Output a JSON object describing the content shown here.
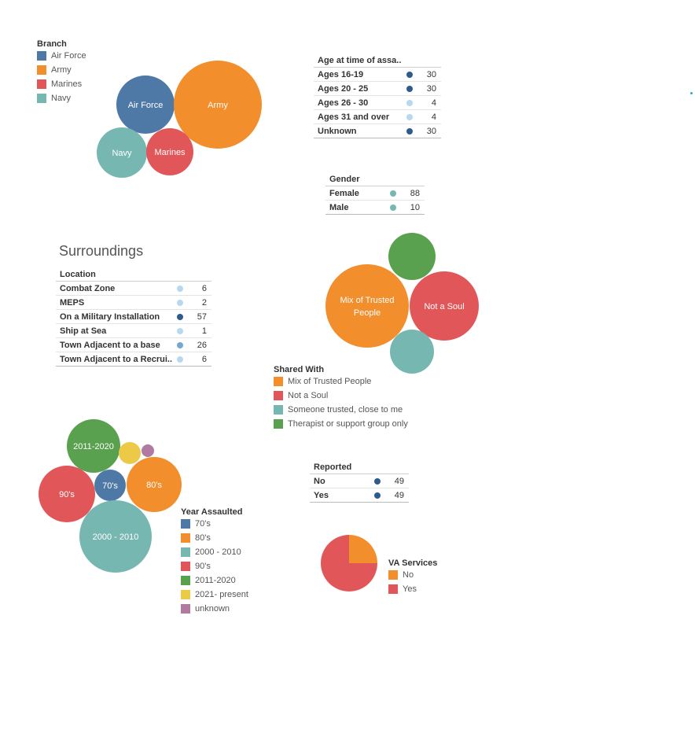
{
  "colors": {
    "blue": "#4e79a7",
    "orange": "#f28e2b",
    "red": "#e15759",
    "teal": "#76b7b2",
    "green": "#59a14f",
    "yellow": "#edc948",
    "purple": "#b07aa1",
    "dot_dark": "#2d5b8c",
    "dot_light": "#b7d8ee",
    "dot_mid": "#76a7d0",
    "dot_teal": "#76b7b2"
  },
  "branch": {
    "legend_title": "Branch",
    "legend": [
      {
        "label": "Air Force",
        "color": "#4e79a7"
      },
      {
        "label": "Army",
        "color": "#f28e2b"
      },
      {
        "label": "Marines",
        "color": "#e15759"
      },
      {
        "label": "Navy",
        "color": "#76b7b2"
      }
    ]
  },
  "age_table": {
    "title": "Age at time of assa..",
    "rows": [
      {
        "label": "Ages 16-19",
        "value": "30",
        "dot": "#2d5b8c"
      },
      {
        "label": "Ages 20 - 25",
        "value": "30",
        "dot": "#2d5b8c"
      },
      {
        "label": "Ages 26 - 30",
        "value": "4",
        "dot": "#b7d8ee"
      },
      {
        "label": "Ages 31 and over",
        "value": "4",
        "dot": "#b7d8ee"
      },
      {
        "label": "Unknown",
        "value": "30",
        "dot": "#2d5b8c"
      }
    ]
  },
  "gender_table": {
    "title": "Gender",
    "rows": [
      {
        "label": "Female",
        "value": "88",
        "dot": "#76b7b2"
      },
      {
        "label": "Male",
        "value": "10",
        "dot": "#76b7b2"
      }
    ]
  },
  "surroundings": {
    "heading": "Surroundings",
    "table_title": "Location",
    "rows": [
      {
        "label": "Combat Zone",
        "value": "6",
        "dot": "#b7d8ee"
      },
      {
        "label": "MEPS",
        "value": "2",
        "dot": "#b7d8ee"
      },
      {
        "label": "On a Military Installation",
        "value": "57",
        "dot": "#2d5b8c"
      },
      {
        "label": "Ship at Sea",
        "value": "1",
        "dot": "#b7d8ee"
      },
      {
        "label": "Town Adjacent to a base",
        "value": "26",
        "dot": "#76a7d0"
      },
      {
        "label": "Town Adjacent to a Recrui..",
        "value": "6",
        "dot": "#b7d8ee"
      }
    ]
  },
  "shared_with": {
    "legend_title": "Shared With",
    "legend": [
      {
        "label": "Mix of Trusted People",
        "color": "#f28e2b"
      },
      {
        "label": "Not a Soul",
        "color": "#e15759"
      },
      {
        "label": "Someone trusted, close to me",
        "color": "#76b7b2"
      },
      {
        "label": "Therapist or support group only",
        "color": "#59a14f"
      }
    ]
  },
  "year_assaulted": {
    "legend_title": "Year Assaulted",
    "legend": [
      {
        "label": "70's",
        "color": "#4e79a7"
      },
      {
        "label": "80's",
        "color": "#f28e2b"
      },
      {
        "label": "2000 - 2010",
        "color": "#76b7b2"
      },
      {
        "label": "90's",
        "color": "#e15759"
      },
      {
        "label": "2011-2020",
        "color": "#59a14f"
      },
      {
        "label": "2021- present",
        "color": "#edc948"
      },
      {
        "label": "unknown",
        "color": "#b07aa1"
      }
    ]
  },
  "reported_table": {
    "title": "Reported",
    "rows": [
      {
        "label": "No",
        "value": "49",
        "dot": "#2d5b8c"
      },
      {
        "label": "Yes",
        "value": "49",
        "dot": "#2d5b8c"
      }
    ]
  },
  "va_services": {
    "legend_title": "VA Services",
    "legend": [
      {
        "label": "No",
        "color": "#f28e2b"
      },
      {
        "label": "Yes",
        "color": "#e15759"
      }
    ]
  },
  "chart_data": [
    {
      "type": "bubble",
      "name": "branch",
      "items": [
        {
          "label": "Air Force",
          "color": "#4e79a7"
        },
        {
          "label": "Army",
          "color": "#f28e2b"
        },
        {
          "label": "Navy",
          "color": "#76b7b2"
        },
        {
          "label": "Marines",
          "color": "#e15759"
        }
      ]
    },
    {
      "type": "table",
      "name": "age",
      "categories": [
        "Ages 16-19",
        "Ages 20 - 25",
        "Ages 26 - 30",
        "Ages 31 and over",
        "Unknown"
      ],
      "values": [
        30,
        30,
        4,
        4,
        30
      ]
    },
    {
      "type": "table",
      "name": "gender",
      "categories": [
        "Female",
        "Male"
      ],
      "values": [
        88,
        10
      ]
    },
    {
      "type": "table",
      "name": "location",
      "categories": [
        "Combat Zone",
        "MEPS",
        "On a Military Installation",
        "Ship at Sea",
        "Town Adjacent to a base",
        "Town Adjacent to a Recrui.."
      ],
      "values": [
        6,
        2,
        57,
        1,
        26,
        6
      ]
    },
    {
      "type": "bubble",
      "name": "shared_with",
      "items": [
        {
          "label": "Therapist or support group only",
          "text": "",
          "color": "#59a14f"
        },
        {
          "label": "Mix of Trusted People",
          "text": "Mix of Trusted People",
          "color": "#f28e2b"
        },
        {
          "label": "Not a Soul",
          "text": "Not a Soul",
          "color": "#e15759"
        },
        {
          "label": "Someone trusted, close to me",
          "text": "",
          "color": "#76b7b2"
        }
      ]
    },
    {
      "type": "bubble",
      "name": "year_assaulted",
      "items": [
        {
          "label": "2011-2020",
          "text": "2011-2020",
          "color": "#59a14f"
        },
        {
          "label": "2021- present",
          "text": "",
          "color": "#edc948"
        },
        {
          "label": "unknown",
          "text": "",
          "color": "#b07aa1"
        },
        {
          "label": "90's",
          "text": "90's",
          "color": "#e15759"
        },
        {
          "label": "70's",
          "text": "70's",
          "color": "#4e79a7"
        },
        {
          "label": "80's",
          "text": "80's",
          "color": "#f28e2b"
        },
        {
          "label": "2000 - 2010",
          "text": "2000 - 2010",
          "color": "#76b7b2"
        }
      ]
    },
    {
      "type": "table",
      "name": "reported",
      "categories": [
        "No",
        "Yes"
      ],
      "values": [
        49,
        49
      ]
    },
    {
      "type": "pie",
      "name": "va_services",
      "categories": [
        "No",
        "Yes"
      ],
      "values": [
        25,
        75
      ],
      "colors": [
        "#f28e2b",
        "#e15759"
      ]
    }
  ]
}
